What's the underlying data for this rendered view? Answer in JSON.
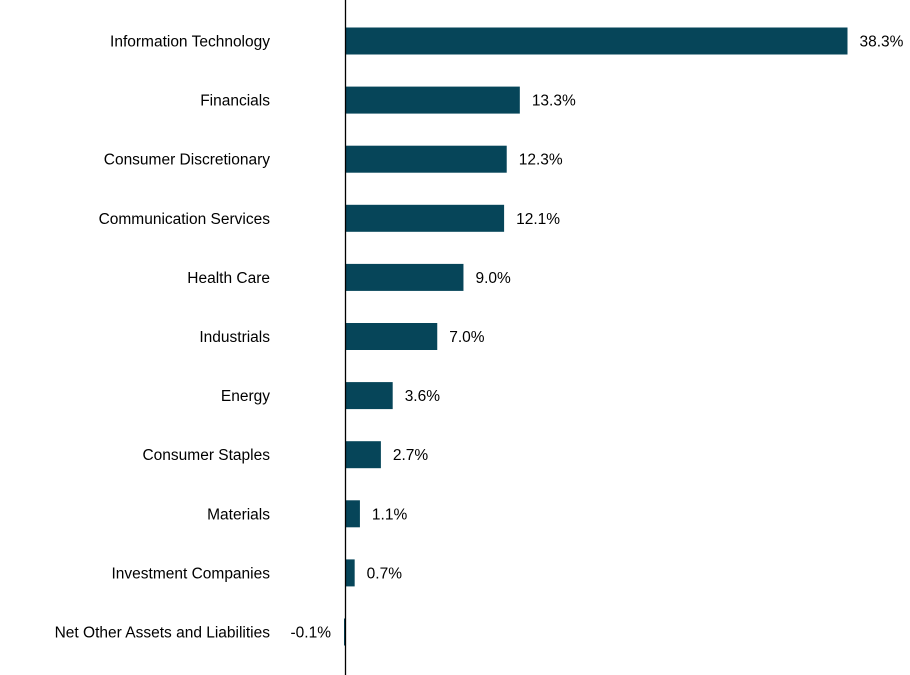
{
  "chart_data": {
    "type": "bar",
    "orientation": "horizontal",
    "categories": [
      "Information Technology",
      "Financials",
      "Consumer Discretionary",
      "Communication Services",
      "Health Care",
      "Industrials",
      "Energy",
      "Consumer Staples",
      "Materials",
      "Investment Companies",
      "Net Other Assets and Liabilities"
    ],
    "values": [
      38.3,
      13.3,
      12.3,
      12.1,
      9.0,
      7.0,
      3.6,
      2.7,
      1.1,
      0.7,
      -0.1
    ],
    "value_labels": [
      "38.3%",
      "13.3%",
      "12.3%",
      "12.1%",
      "9.0%",
      "7.0%",
      "3.6%",
      "2.7%",
      "1.1%",
      "0.7%",
      "-0.1%"
    ],
    "title": "",
    "xlabel": "",
    "ylabel": "",
    "xlim": [
      -0.1,
      38.3
    ],
    "grid": false,
    "legend": "none",
    "bar_color": "#064559",
    "axis_color": "#000000"
  }
}
